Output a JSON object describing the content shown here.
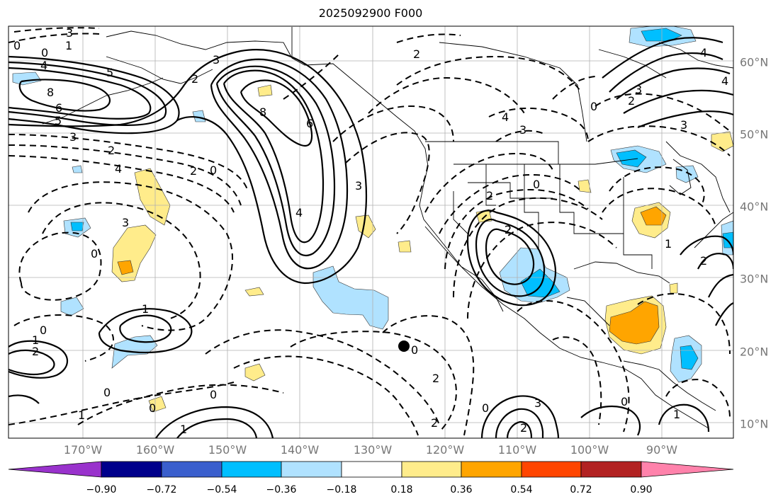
{
  "title": "2025092900 F000",
  "lon_labels": [
    "170°W",
    "160°W",
    "150°W",
    "140°W",
    "130°W",
    "120°W",
    "110°W",
    "100°W",
    "90°W"
  ],
  "lat_labels": [
    "60°N",
    "50°N",
    "40°N",
    "30°N",
    "20°N",
    "10°N"
  ],
  "colorbar": {
    "ticks": [
      "−0.90",
      "−0.72",
      "−0.54",
      "−0.36",
      "−0.18",
      "0.18",
      "0.36",
      "0.54",
      "0.72",
      "0.90"
    ],
    "colors": [
      "#9932cc",
      "#00008b",
      "#3a5fcd",
      "#00bfff",
      "#b0e2ff",
      "#ffffff",
      "#ffec8b",
      "#ffa500",
      "#ff4500",
      "#b22222",
      "#ff82ab"
    ]
  },
  "map": {
    "lon_range": [
      -180,
      -80
    ],
    "lat_range": [
      8,
      65
    ],
    "gridlines": true
  },
  "contour_labels": [
    "3",
    "0",
    "1",
    "0",
    "4",
    "5",
    "8",
    "6",
    "5",
    "3",
    "2",
    "2",
    "4",
    "0",
    "2",
    "3",
    "8",
    "6",
    "3",
    "4",
    "2",
    "4",
    "3",
    "0",
    "2",
    "3",
    "2",
    "0",
    "0",
    "1",
    "0",
    "1",
    "2",
    "0",
    "0",
    "1",
    "0",
    "0",
    "2",
    "2",
    "2",
    "4",
    "3",
    "4",
    "2",
    "3",
    "2",
    "1",
    "2",
    "3",
    "0",
    "0",
    "1",
    "1"
  ]
}
